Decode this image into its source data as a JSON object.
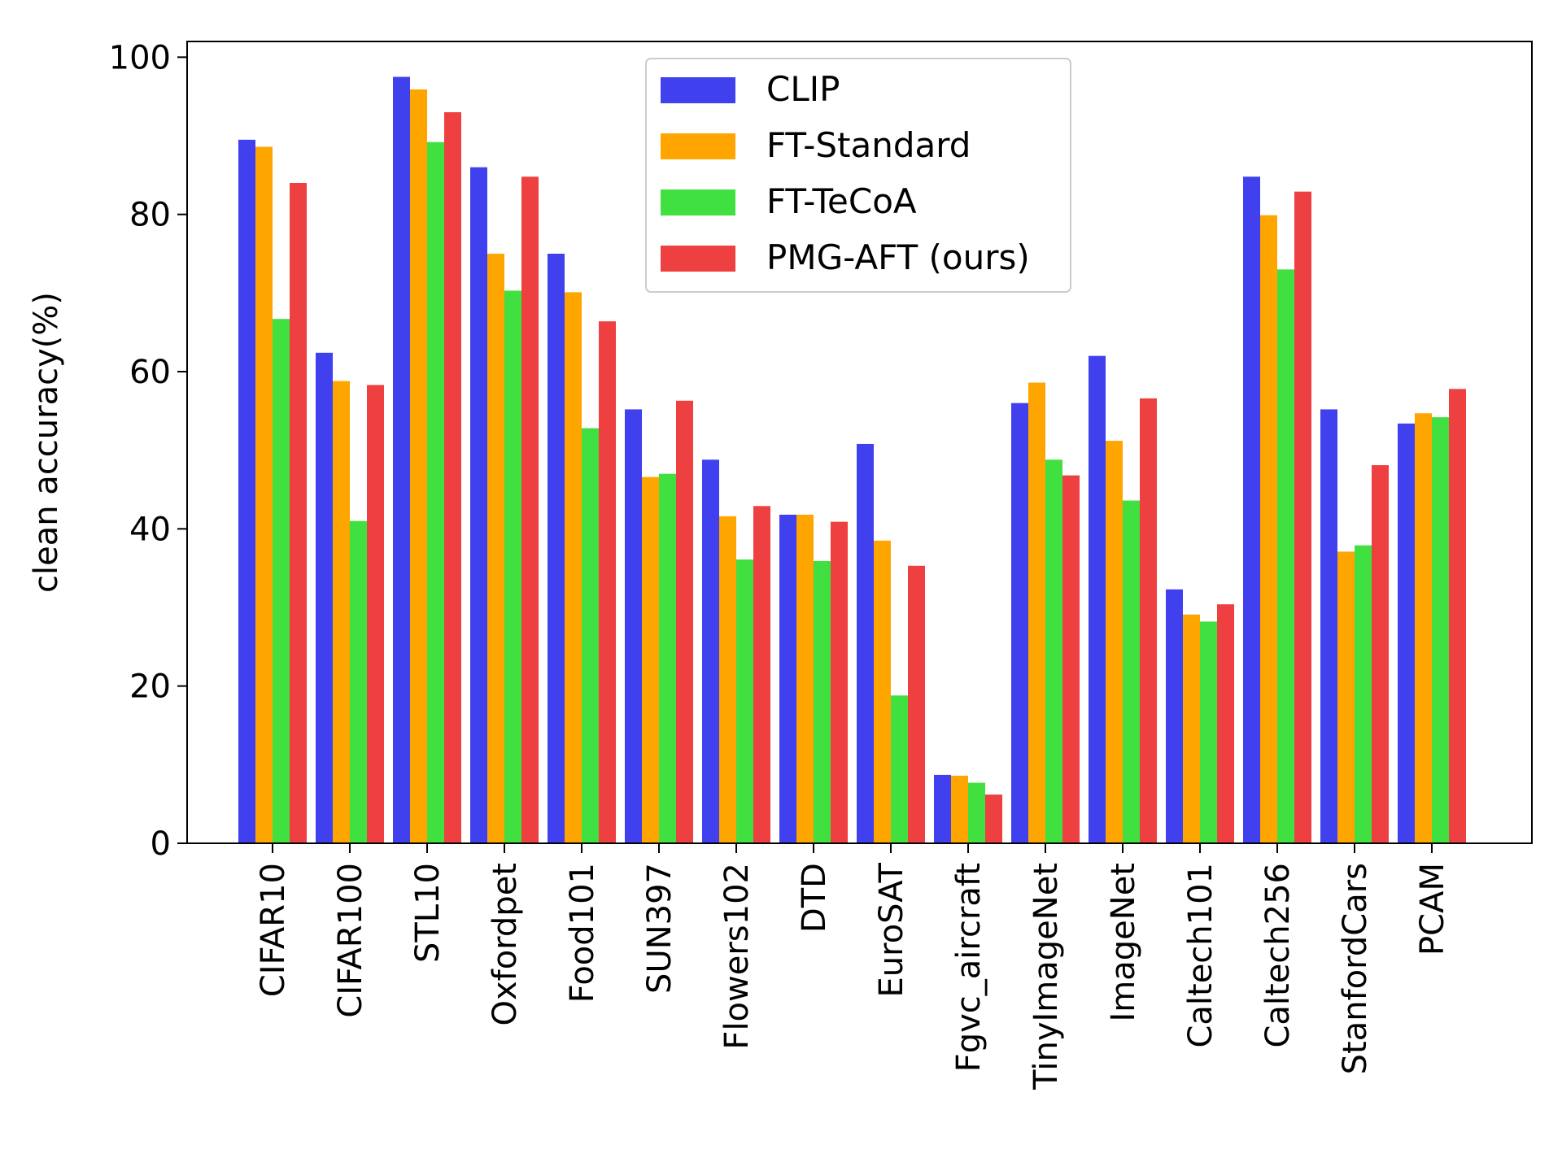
{
  "chart_data": {
    "type": "bar",
    "xlabel": "",
    "ylabel": "clean accuracy(%)",
    "ylim": [
      0,
      102
    ],
    "yticks": [
      0,
      20,
      40,
      60,
      80,
      100
    ],
    "grid": false,
    "legend_position": "top-center",
    "categories": [
      "CIFAR10",
      "CIFAR100",
      "STL10",
      "Oxfordpet",
      "Food101",
      "SUN397",
      "Flowers102",
      "DTD",
      "EuroSAT",
      "Fgvc_aircraft",
      "TinyImageNet",
      "ImageNet",
      "Caltech101",
      "Caltech256",
      "StanfordCars",
      "PCAM"
    ],
    "series": [
      {
        "name": "CLIP",
        "color": "#4040ee",
        "values": [
          89.5,
          62.4,
          97.5,
          86.0,
          75.0,
          55.2,
          48.8,
          41.8,
          50.8,
          8.7,
          56.0,
          62.0,
          32.3,
          84.8,
          55.2,
          53.4
        ]
      },
      {
        "name": "FT-Standard",
        "color": "#ffa500",
        "values": [
          88.6,
          58.8,
          95.9,
          75.0,
          70.1,
          46.6,
          41.6,
          41.8,
          38.5,
          8.6,
          58.6,
          51.2,
          29.1,
          79.9,
          37.1,
          54.7
        ]
      },
      {
        "name": "FT-TeCoA",
        "color": "#40e040",
        "values": [
          66.7,
          41.0,
          89.2,
          70.3,
          52.8,
          47.0,
          36.1,
          35.9,
          18.8,
          7.7,
          48.8,
          43.6,
          28.2,
          73.0,
          37.9,
          54.2
        ]
      },
      {
        "name": "PMG-AFT (ours)",
        "color": "#ee4040",
        "values": [
          84.0,
          58.3,
          93.0,
          84.8,
          66.4,
          56.3,
          42.9,
          40.9,
          35.3,
          6.2,
          46.8,
          56.6,
          30.4,
          82.9,
          48.1,
          57.8
        ]
      }
    ]
  }
}
